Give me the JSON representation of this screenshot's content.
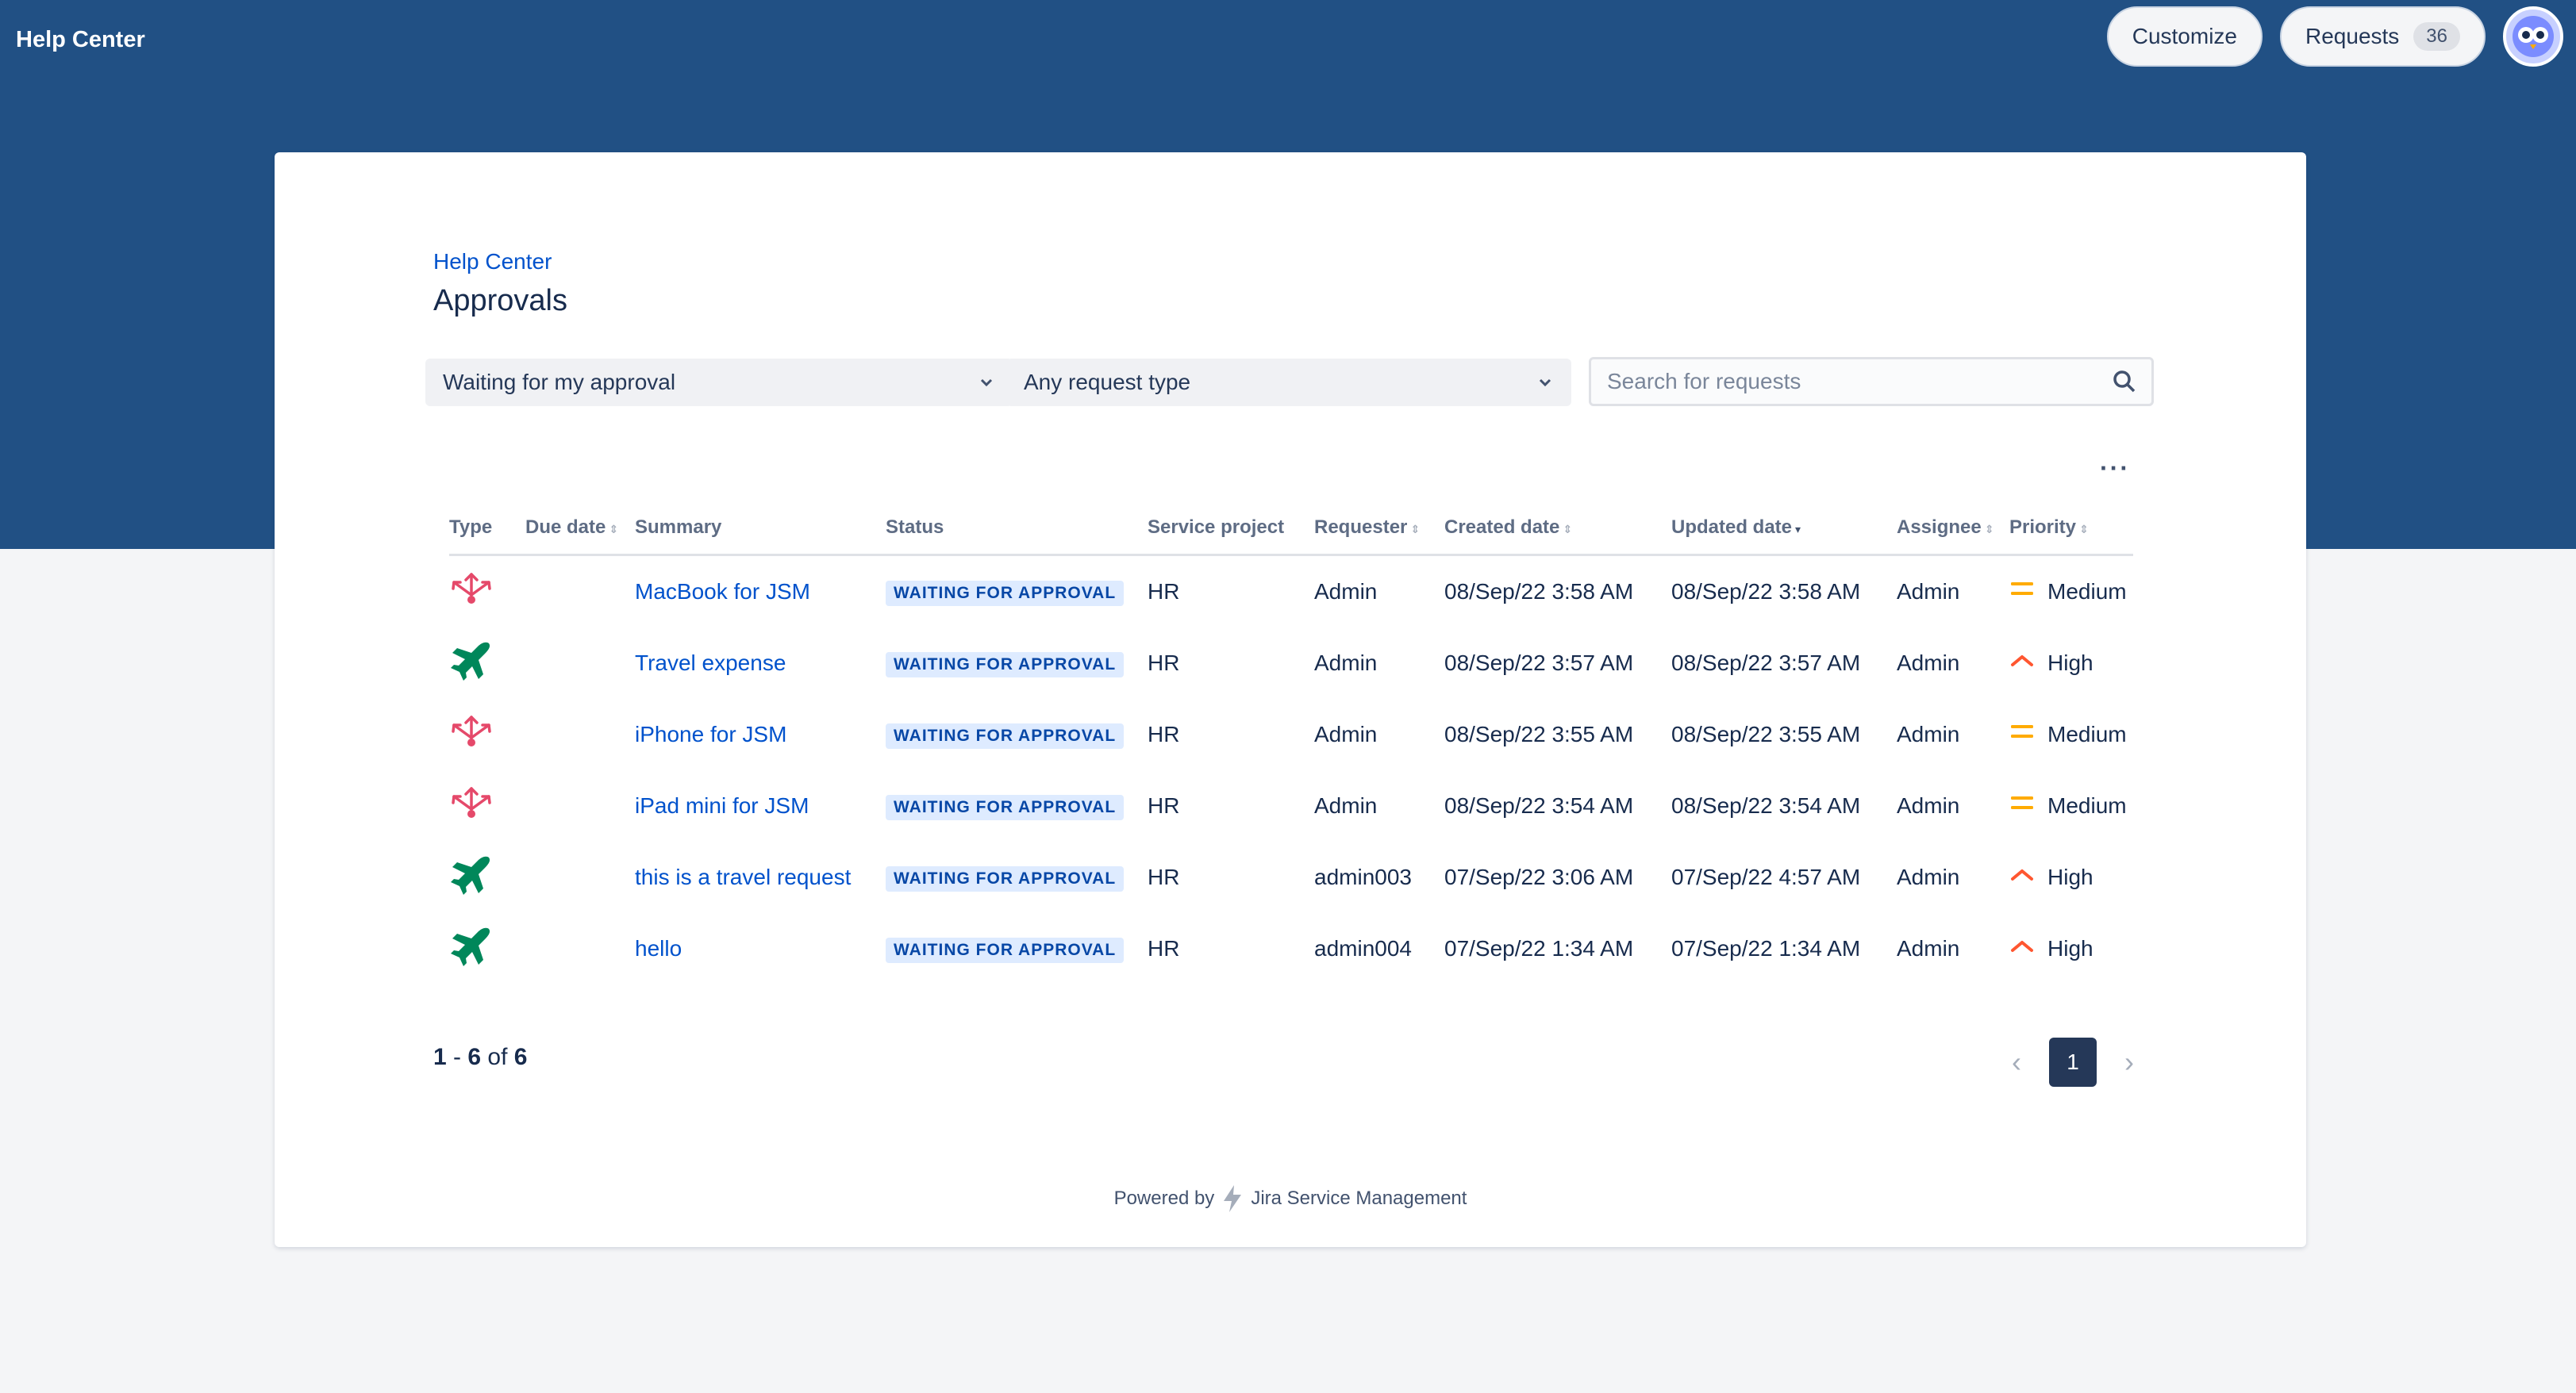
{
  "header": {
    "brand": "Help Center",
    "customize_label": "Customize",
    "requests_label": "Requests",
    "requests_count": "36"
  },
  "page": {
    "breadcrumb": "Help Center",
    "title": "Approvals",
    "filter_status": "Waiting for my approval",
    "filter_type": "Any request type",
    "search_placeholder": "Search for requests",
    "more_label": "···"
  },
  "table": {
    "headers": {
      "type": "Type",
      "due": "Due date",
      "summary": "Summary",
      "status": "Status",
      "project": "Service project",
      "requester": "Requester",
      "created": "Created date",
      "updated": "Updated date",
      "assignee": "Assignee",
      "priority": "Priority"
    },
    "rows": [
      {
        "type_icon": "hardware-request-icon",
        "summary": "MacBook for JSM",
        "status": "WAITING FOR APPROVAL",
        "project": "HR",
        "requester": "Admin",
        "created": "08/Sep/22 3:58 AM",
        "updated": "08/Sep/22 3:58 AM",
        "assignee": "Admin",
        "priority": "Medium",
        "priority_icon": "priority-medium-icon"
      },
      {
        "type_icon": "airplane-icon",
        "summary": "Travel expense",
        "status": "WAITING FOR APPROVAL",
        "project": "HR",
        "requester": "Admin",
        "created": "08/Sep/22 3:57 AM",
        "updated": "08/Sep/22 3:57 AM",
        "assignee": "Admin",
        "priority": "High",
        "priority_icon": "priority-high-icon"
      },
      {
        "type_icon": "hardware-request-icon",
        "summary": "iPhone for JSM",
        "status": "WAITING FOR APPROVAL",
        "project": "HR",
        "requester": "Admin",
        "created": "08/Sep/22 3:55 AM",
        "updated": "08/Sep/22 3:55 AM",
        "assignee": "Admin",
        "priority": "Medium",
        "priority_icon": "priority-medium-icon"
      },
      {
        "type_icon": "hardware-request-icon",
        "summary": "iPad mini for JSM",
        "status": "WAITING FOR APPROVAL",
        "project": "HR",
        "requester": "Admin",
        "created": "08/Sep/22 3:54 AM",
        "updated": "08/Sep/22 3:54 AM",
        "assignee": "Admin",
        "priority": "Medium",
        "priority_icon": "priority-medium-icon"
      },
      {
        "type_icon": "airplane-icon",
        "summary": "this is a travel request",
        "status": "WAITING FOR APPROVAL",
        "project": "HR",
        "requester": "admin003",
        "created": "07/Sep/22 3:06 AM",
        "updated": "07/Sep/22 4:57 AM",
        "assignee": "Admin",
        "priority": "High",
        "priority_icon": "priority-high-icon"
      },
      {
        "type_icon": "airplane-icon",
        "summary": "hello",
        "status": "WAITING FOR APPROVAL",
        "project": "HR",
        "requester": "admin004",
        "created": "07/Sep/22 1:34 AM",
        "updated": "07/Sep/22 1:34 AM",
        "assignee": "Admin",
        "priority": "High",
        "priority_icon": "priority-high-icon"
      }
    ]
  },
  "pagination": {
    "start": "1",
    "dash": "-",
    "end": "6",
    "of": "of",
    "total": "6",
    "current_page": "1"
  },
  "footer": {
    "powered_by": "Powered by",
    "product": "Jira Service Management"
  },
  "colors": {
    "header_bg": "#215084",
    "link": "#0052cc",
    "lozenge_bg": "#deebff",
    "priority_medium": "#ffab00",
    "priority_high": "#ff5630",
    "airplane": "#00875a",
    "hardware": "#e5496a"
  }
}
